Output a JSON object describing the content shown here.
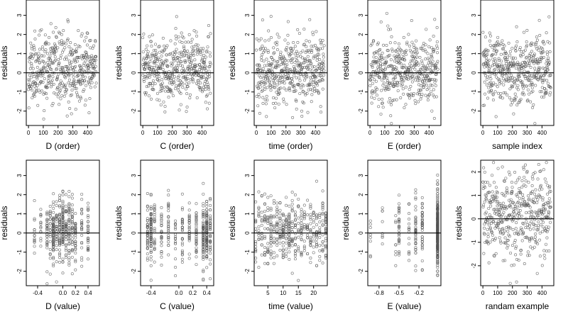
{
  "chart_data": [
    {
      "type": "scatter",
      "xlabel": "D (order)",
      "ylabel": "residuals",
      "xlim": [
        -15,
        480
      ],
      "ylim": [
        -2.75,
        3.8
      ],
      "xticks": [
        0,
        100,
        200,
        300,
        400
      ],
      "xtick_labels": [
        "0",
        "100",
        "200",
        "300",
        "400"
      ],
      "yticks": [
        -2,
        -1,
        0,
        1,
        2,
        3
      ],
      "ytick_labels": [
        "-2",
        "-1",
        "0",
        "1",
        "2",
        "3"
      ],
      "hline": 0,
      "points": {
        "kind": "index",
        "n": 460,
        "seed": 11,
        "amp": 0.9
      }
    },
    {
      "type": "scatter",
      "xlabel": "C (order)",
      "ylabel": "residuals",
      "xlim": [
        -15,
        480
      ],
      "ylim": [
        -2.75,
        3.8
      ],
      "xticks": [
        0,
        100,
        200,
        300,
        400
      ],
      "xtick_labels": [
        "0",
        "100",
        "200",
        "300",
        "400"
      ],
      "yticks": [
        -2,
        -1,
        0,
        1,
        2,
        3
      ],
      "ytick_labels": [
        "-2",
        "-1",
        "0",
        "1",
        "2",
        "3"
      ],
      "hline": 0,
      "points": {
        "kind": "index",
        "n": 460,
        "seed": 23,
        "amp": 0.85
      }
    },
    {
      "type": "scatter",
      "xlabel": "time (order)",
      "ylabel": "residuals",
      "xlim": [
        -15,
        480
      ],
      "ylim": [
        -2.75,
        3.8
      ],
      "xticks": [
        0,
        100,
        200,
        300,
        400
      ],
      "xtick_labels": [
        "0",
        "100",
        "200",
        "300",
        "400"
      ],
      "yticks": [
        -2,
        -1,
        0,
        1,
        2,
        3
      ],
      "ytick_labels": [
        "-2",
        "-1",
        "0",
        "1",
        "2",
        "3"
      ],
      "hline": 0,
      "points": {
        "kind": "index",
        "n": 460,
        "seed": 37,
        "amp": 0.9
      }
    },
    {
      "type": "scatter",
      "xlabel": "E (order)",
      "ylabel": "residuals",
      "xlim": [
        -15,
        480
      ],
      "ylim": [
        -2.75,
        3.8
      ],
      "xticks": [
        0,
        100,
        200,
        300,
        400
      ],
      "xtick_labels": [
        "0",
        "100",
        "200",
        "300",
        "400"
      ],
      "yticks": [
        -2,
        -1,
        0,
        1,
        2,
        3
      ],
      "ytick_labels": [
        "-2",
        "-1",
        "0",
        "1",
        "2",
        "3"
      ],
      "hline": 0,
      "points": {
        "kind": "index",
        "n": 460,
        "seed": 41,
        "amp": 0.9
      }
    },
    {
      "type": "scatter",
      "xlabel": "sample index",
      "ylabel": "residuals",
      "xlim": [
        -15,
        480
      ],
      "ylim": [
        -2.75,
        3.8
      ],
      "xticks": [
        0,
        100,
        200,
        300,
        400
      ],
      "xtick_labels": [
        "0",
        "100",
        "200",
        "300",
        "400"
      ],
      "yticks": [
        -2,
        -1,
        0,
        1,
        2,
        3
      ],
      "ytick_labels": [
        "-2",
        "-1",
        "0",
        "1",
        "2",
        "3"
      ],
      "hline": 0,
      "points": {
        "kind": "index",
        "n": 460,
        "seed": 53,
        "amp": 0.85
      }
    },
    {
      "type": "scatter",
      "xlabel": "D (value)",
      "ylabel": "residuals",
      "xlim": [
        -0.58,
        0.58
      ],
      "ylim": [
        -2.75,
        3.8
      ],
      "xticks": [
        -0.4,
        0,
        0.2,
        0.4
      ],
      "xtick_labels": [
        "-0.4",
        "0.0",
        "0.2",
        "0.4"
      ],
      "yticks": [
        -2,
        -1,
        0,
        1,
        2,
        3
      ],
      "ytick_labels": [
        "-2",
        "-1",
        "0",
        "1",
        "2",
        "3"
      ],
      "hline": 0,
      "points": {
        "kind": "levels",
        "seed": 61,
        "amp": 0.85,
        "levels": [
          -0.45,
          -0.35,
          -0.25,
          -0.2,
          -0.15,
          -0.1,
          -0.05,
          0.0,
          0.05,
          0.1,
          0.15,
          0.2,
          0.3,
          0.4
        ],
        "weights": [
          2,
          2,
          4,
          3,
          8,
          4,
          6,
          9,
          5,
          6,
          4,
          4,
          3,
          4
        ]
      }
    },
    {
      "type": "scatter",
      "xlabel": "C (value)",
      "ylabel": "residuals",
      "xlim": [
        -0.55,
        0.5
      ],
      "ylim": [
        -2.75,
        3.8
      ],
      "xticks": [
        -0.4,
        0,
        0.2,
        0.4
      ],
      "xtick_labels": [
        "-0.4",
        "0.0",
        "0.2",
        "0.4"
      ],
      "yticks": [
        -2,
        -1,
        0,
        1,
        2,
        3
      ],
      "ytick_labels": [
        "-2",
        "-1",
        "0",
        "1",
        "2",
        "3"
      ],
      "hline": 0,
      "points": {
        "kind": "levels",
        "seed": 71,
        "amp": 0.85,
        "levels": [
          -0.45,
          -0.4,
          -0.35,
          -0.25,
          -0.15,
          -0.05,
          0.05,
          0.15,
          0.25,
          0.35,
          0.4,
          0.45
        ],
        "weights": [
          4,
          7,
          3,
          3,
          3,
          2,
          3,
          3,
          4,
          8,
          9,
          4
        ]
      }
    },
    {
      "type": "scatter",
      "xlabel": "time (value)",
      "ylabel": "residuals",
      "xlim": [
        0.5,
        24.5
      ],
      "ylim": [
        -2.75,
        3.8
      ],
      "xticks": [
        5,
        10,
        15,
        20
      ],
      "xtick_labels": [
        "5",
        "10",
        "15",
        "20"
      ],
      "yticks": [
        -2,
        -1,
        0,
        1,
        2,
        3
      ],
      "ytick_labels": [
        "-2",
        "-1",
        "0",
        "1",
        "2",
        "3"
      ],
      "hline": 0,
      "points": {
        "kind": "levels",
        "seed": 83,
        "amp": 0.9,
        "levels": [
          1,
          2,
          3,
          4,
          5,
          6,
          7,
          8,
          9,
          10,
          11,
          12,
          13,
          14,
          15,
          16,
          17,
          18,
          19,
          20,
          21,
          22,
          23,
          24
        ],
        "weights": [
          2,
          2,
          2,
          3,
          3,
          4,
          2,
          3,
          3,
          4,
          3,
          5,
          3,
          3,
          2,
          3,
          2,
          2,
          3,
          2,
          3,
          2,
          3,
          4
        ]
      }
    },
    {
      "type": "scatter",
      "xlabel": "E (value)",
      "ylabel": "residuals",
      "xlim": [
        -0.97,
        0.13
      ],
      "ylim": [
        -2.75,
        3.8
      ],
      "xticks": [
        -0.8,
        -0.5,
        -0.2
      ],
      "xtick_labels": [
        "-0.8",
        "-0.5",
        "-0.2"
      ],
      "yticks": [
        -2,
        -1,
        0,
        1,
        2,
        3
      ],
      "ytick_labels": [
        "-2",
        "-1",
        "0",
        "1",
        "2",
        "3"
      ],
      "hline": 0,
      "points": {
        "kind": "levels",
        "seed": 97,
        "amp": 0.9,
        "levels": [
          -0.93,
          -0.75,
          -0.55,
          -0.5,
          -0.35,
          -0.25,
          -0.15,
          0.08
        ],
        "weights": [
          1,
          1,
          1,
          4,
          2,
          5,
          5,
          40
        ]
      }
    },
    {
      "type": "scatter",
      "xlabel": "randam example",
      "ylabel": "residuals",
      "xlim": [
        -15,
        480
      ],
      "ylim": [
        -2.85,
        2.5
      ],
      "xticks": [
        0,
        100,
        200,
        300,
        400
      ],
      "xtick_labels": [
        "0",
        "100",
        "200",
        "300",
        "400"
      ],
      "yticks": [
        -2,
        -1,
        0,
        1,
        2
      ],
      "ytick_labels": [
        "-2",
        "-1",
        "0",
        "1",
        "2"
      ],
      "hline": 0,
      "points": {
        "kind": "index",
        "n": 460,
        "seed": 103,
        "amp": 0.95
      }
    }
  ]
}
